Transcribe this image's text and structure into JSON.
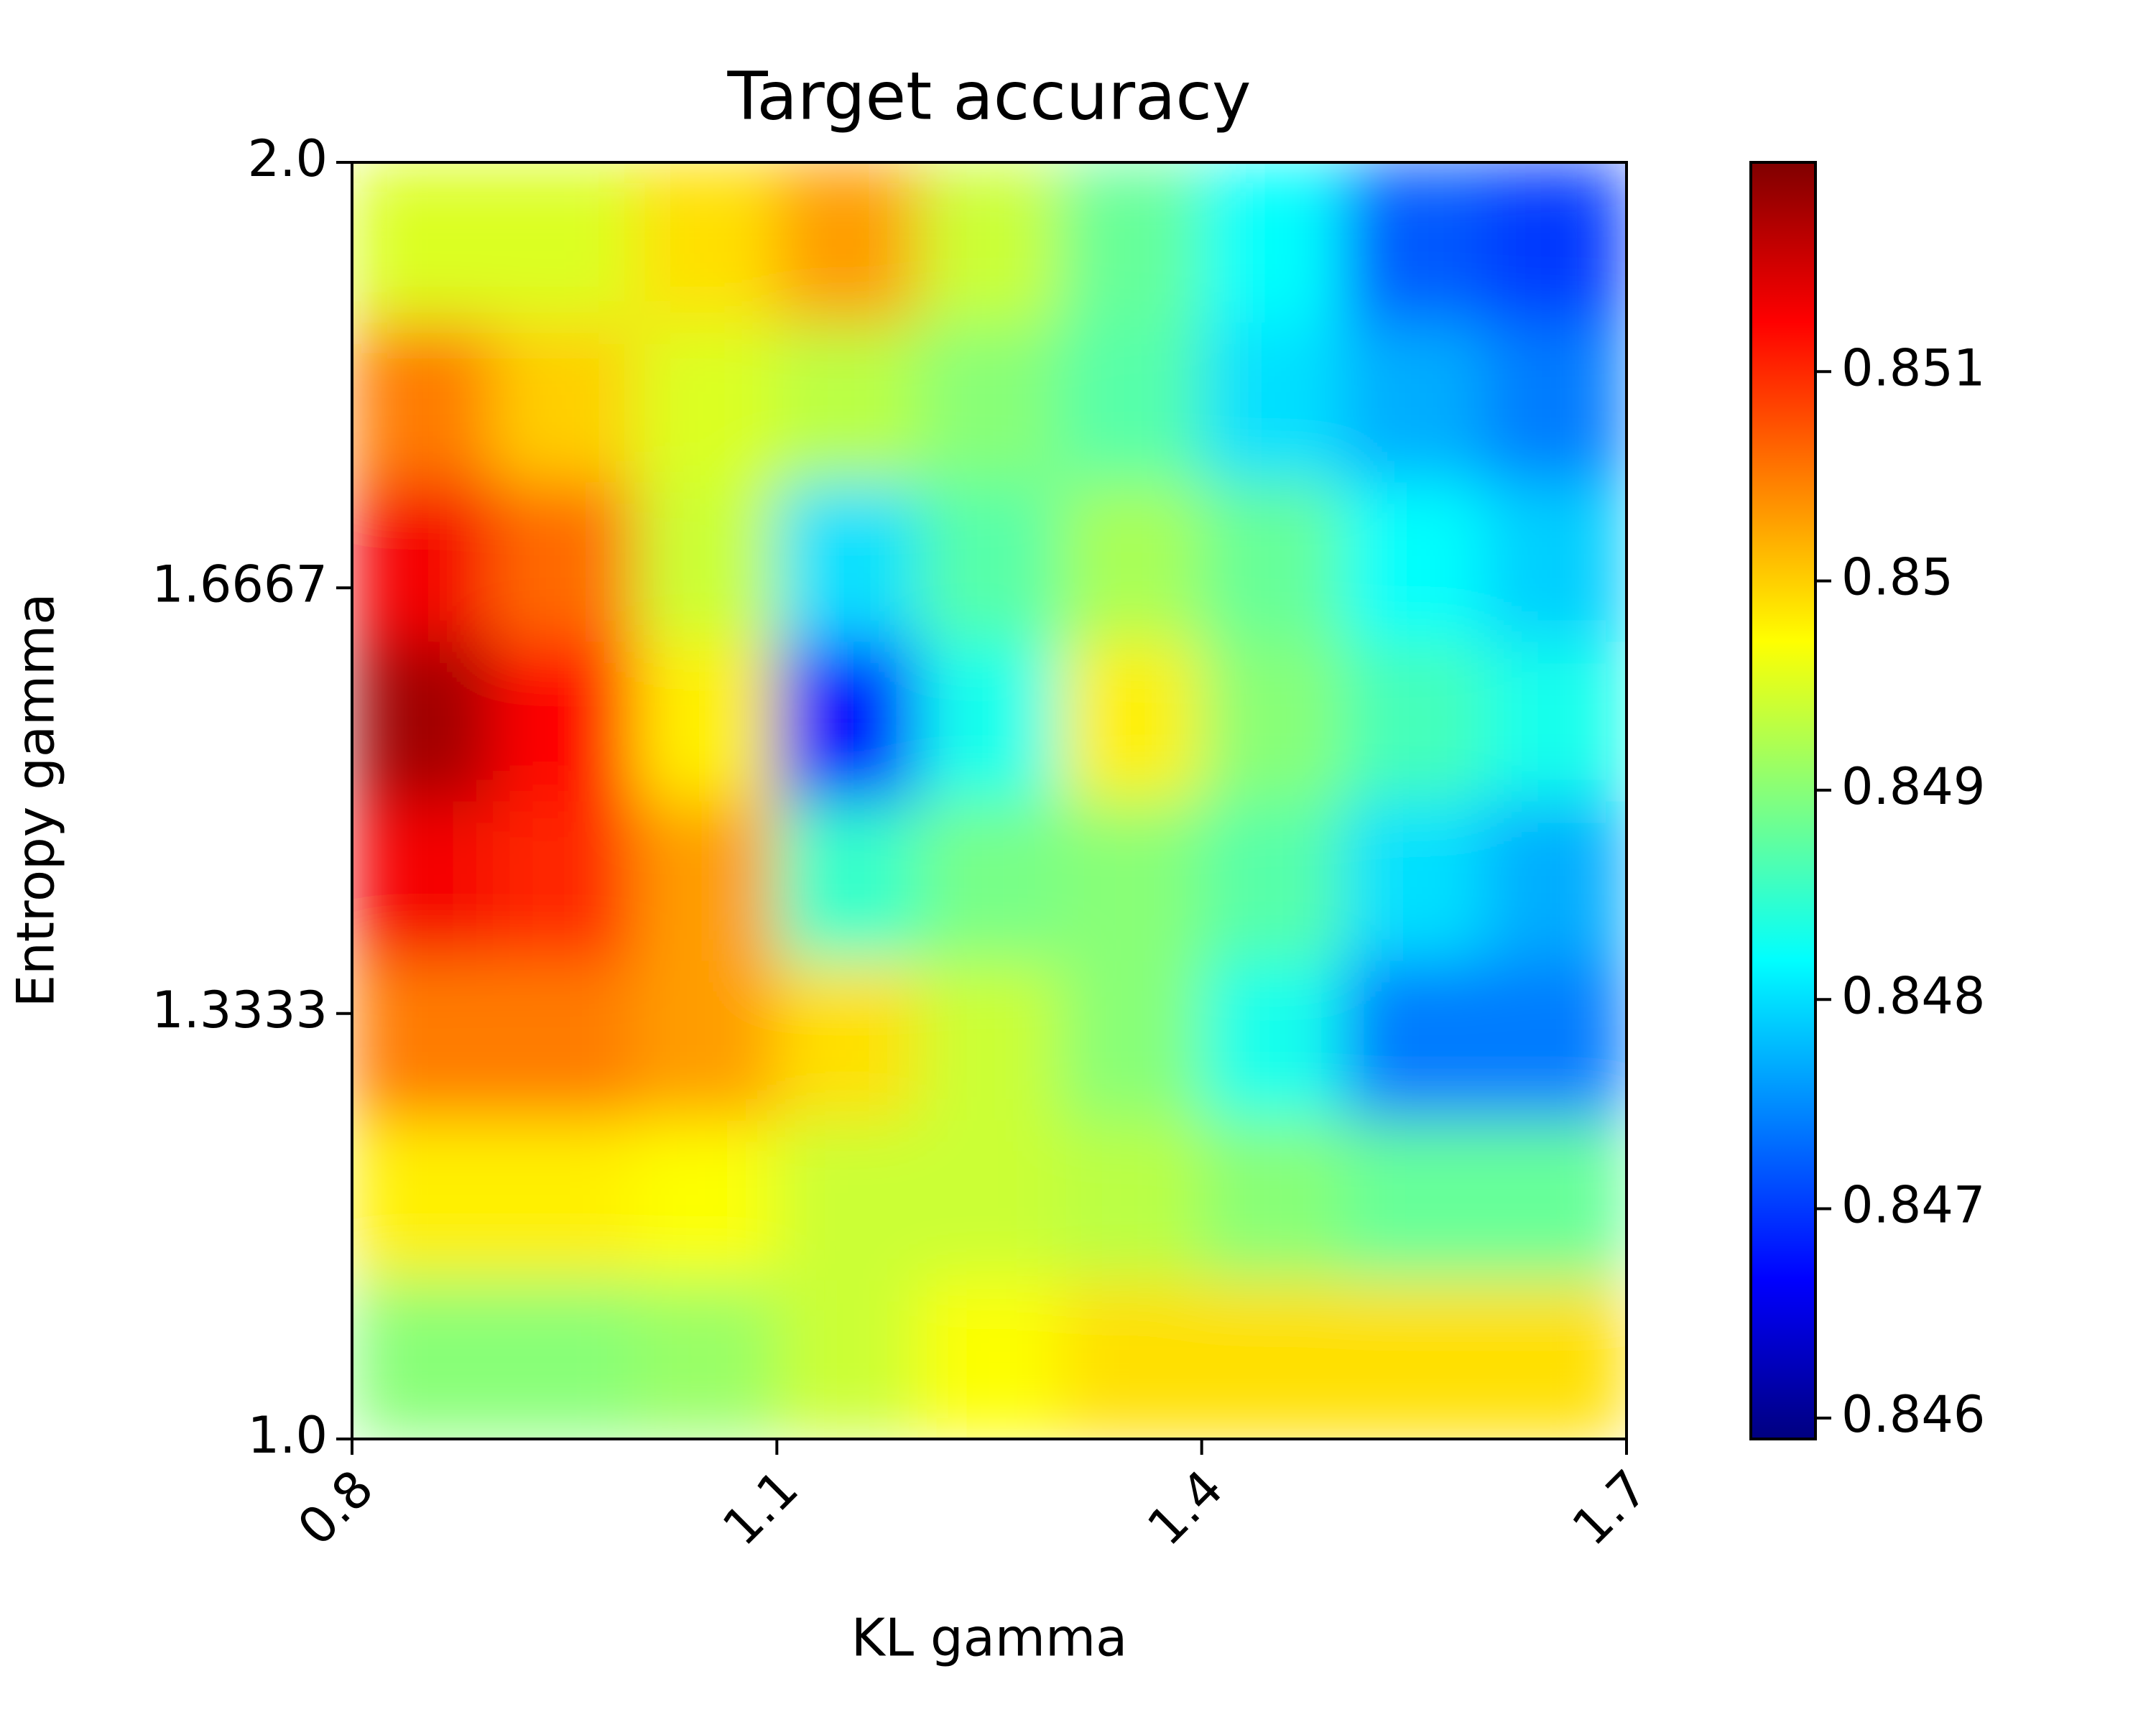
{
  "chart_data": {
    "type": "heatmap",
    "title": "Target accuracy",
    "xlabel": "KL gamma",
    "ylabel": "Entropy gamma",
    "colormap": "jet",
    "x": [
      0.85,
      0.95,
      1.05,
      1.15,
      1.25,
      1.35,
      1.45,
      1.55,
      1.65
    ],
    "y": [
      1.0625,
      1.1875,
      1.3125,
      1.4375,
      1.5625,
      1.6875,
      1.8125,
      1.9375
    ],
    "z": [
      [
        0.849,
        0.849,
        0.8491,
        0.8494,
        0.8497,
        0.8499,
        0.8499,
        0.8499,
        0.8499
      ],
      [
        0.8498,
        0.8498,
        0.8497,
        0.8494,
        0.8494,
        0.8493,
        0.849,
        0.8488,
        0.8488
      ],
      [
        0.8505,
        0.8505,
        0.8503,
        0.8499,
        0.8494,
        0.849,
        0.8483,
        0.8474,
        0.8474
      ],
      [
        0.8513,
        0.851,
        0.8503,
        0.8485,
        0.8489,
        0.849,
        0.8487,
        0.848,
        0.8477
      ],
      [
        0.8518,
        0.8512,
        0.8498,
        0.8467,
        0.8483,
        0.8498,
        0.849,
        0.8486,
        0.8483
      ],
      [
        0.8513,
        0.8506,
        0.8494,
        0.848,
        0.8487,
        0.8492,
        0.8488,
        0.8482,
        0.8479
      ],
      [
        0.8505,
        0.85,
        0.8495,
        0.8493,
        0.849,
        0.8487,
        0.848,
        0.8477,
        0.8474
      ],
      [
        0.8495,
        0.8495,
        0.8499,
        0.8503,
        0.8494,
        0.8488,
        0.8482,
        0.8472,
        0.847
      ]
    ],
    "xlim": [
      0.8,
      1.7
    ],
    "ylim": [
      1.0,
      2.0
    ],
    "xticks": [
      0.8,
      1.1,
      1.4,
      1.7
    ],
    "yticks": [
      {
        "value": 1,
        "label": "1.0"
      },
      1.3333,
      1.6667,
      {
        "value": 2,
        "label": "2.0"
      }
    ],
    "clim": [
      0.8459,
      0.852
    ],
    "cticks": [
      0.846,
      0.847,
      0.848,
      0.849,
      0.85,
      0.851
    ]
  }
}
